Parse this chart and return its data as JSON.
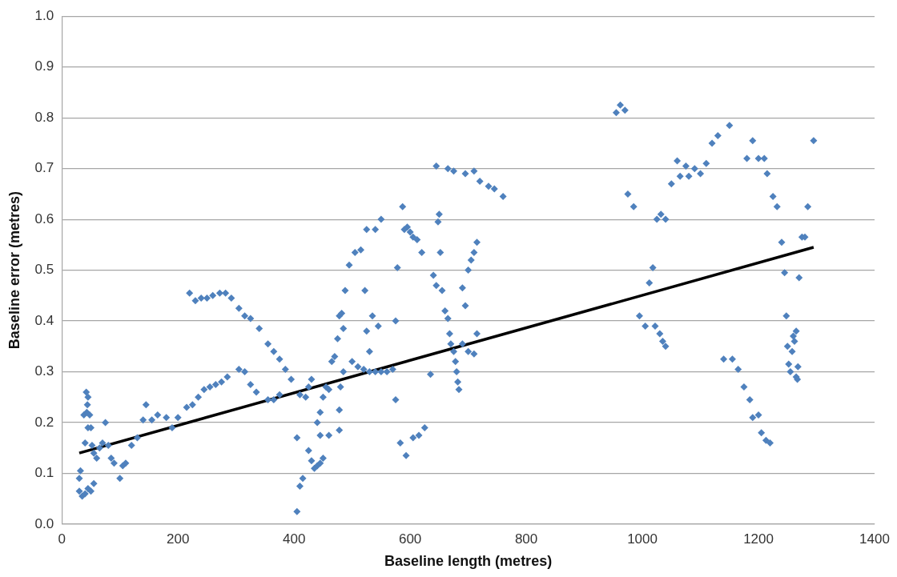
{
  "chart_data": {
    "type": "scatter",
    "xlabel": "Baseline length (metres)",
    "ylabel": "Baseline error (metres)",
    "xlim": [
      0,
      1400
    ],
    "xticks": [
      0,
      200,
      400,
      600,
      800,
      1000,
      1200,
      1400
    ],
    "ylim": [
      0,
      1
    ],
    "yticks": [
      {
        "value": 0,
        "label": "0.0"
      },
      {
        "value": 0.1,
        "label": "0.1"
      },
      {
        "value": 0.2,
        "label": "0.2"
      },
      {
        "value": 0.3,
        "label": "0.3"
      },
      {
        "value": 0.4,
        "label": "0.4"
      },
      {
        "value": 0.5,
        "label": "0.5"
      },
      {
        "value": 0.6,
        "label": "0.6"
      },
      {
        "value": 0.7,
        "label": "0.7"
      },
      {
        "value": 0.8,
        "label": "0.8"
      },
      {
        "value": 0.9,
        "label": "0.9"
      },
      {
        "value": 1,
        "label": "1.0"
      }
    ],
    "grid": "y",
    "legend": false,
    "marker": "diamond",
    "series": [
      {
        "color": "#4f81bd",
        "x": [
          30,
          32,
          30,
          35,
          40,
          45,
          50,
          55,
          38,
          42,
          45,
          44,
          43,
          40,
          45,
          50,
          48,
          52,
          55,
          60,
          65,
          70,
          75,
          80,
          85,
          90,
          100,
          105,
          110,
          120,
          130,
          140,
          145,
          155,
          165,
          180,
          190,
          200,
          215,
          225,
          235,
          245,
          255,
          265,
          275,
          285,
          305,
          315,
          325,
          335,
          355,
          365,
          375,
          220,
          230,
          240,
          250,
          260,
          272,
          282,
          292,
          305,
          315,
          325,
          340,
          355,
          365,
          375,
          385,
          395,
          405,
          410,
          415,
          405,
          410,
          420,
          425,
          430,
          425,
          430,
          435,
          440,
          445,
          450,
          445,
          440,
          445,
          450,
          455,
          460,
          460,
          465,
          470,
          475,
          478,
          482,
          485,
          488,
          495,
          505,
          515,
          525,
          540,
          550,
          478,
          478,
          480,
          485,
          500,
          510,
          520,
          530,
          540,
          550,
          560,
          570,
          522,
          525,
          530,
          535,
          545,
          575,
          578,
          575,
          583,
          593,
          605,
          615,
          625,
          587,
          595,
          590,
          600,
          605,
          612,
          620,
          635,
          640,
          645,
          648,
          650,
          652,
          655,
          660,
          665,
          668,
          670,
          675,
          678,
          680,
          682,
          684,
          690,
          700,
          705,
          710,
          715,
          690,
          695,
          715,
          710,
          700,
          645,
          665,
          675,
          695,
          710,
          720,
          735,
          745,
          760,
          955,
          962,
          970,
          975,
          985,
          995,
          1005,
          1012,
          1018,
          1022,
          1030,
          1035,
          1040,
          1025,
          1032,
          1040,
          1050,
          1060,
          1065,
          1075,
          1080,
          1090,
          1100,
          1110,
          1120,
          1130,
          1150,
          1140,
          1155,
          1165,
          1175,
          1185,
          1190,
          1200,
          1205,
          1213,
          1220,
          1180,
          1190,
          1200,
          1210,
          1215,
          1225,
          1232,
          1240,
          1245,
          1248,
          1250,
          1252,
          1255,
          1260,
          1262,
          1258,
          1265,
          1268,
          1265,
          1267,
          1270,
          1275,
          1280,
          1285,
          1295
        ],
        "values": [
          0.09,
          0.105,
          0.065,
          0.055,
          0.06,
          0.07,
          0.065,
          0.08,
          0.215,
          0.26,
          0.25,
          0.235,
          0.22,
          0.16,
          0.19,
          0.19,
          0.215,
          0.155,
          0.14,
          0.13,
          0.15,
          0.16,
          0.2,
          0.155,
          0.13,
          0.12,
          0.09,
          0.115,
          0.12,
          0.155,
          0.17,
          0.205,
          0.235,
          0.205,
          0.215,
          0.21,
          0.19,
          0.21,
          0.23,
          0.235,
          0.25,
          0.265,
          0.27,
          0.275,
          0.28,
          0.29,
          0.305,
          0.3,
          0.275,
          0.26,
          0.245,
          0.245,
          0.255,
          0.455,
          0.44,
          0.445,
          0.445,
          0.45,
          0.455,
          0.455,
          0.445,
          0.425,
          0.41,
          0.405,
          0.385,
          0.355,
          0.34,
          0.325,
          0.305,
          0.285,
          0.025,
          0.075,
          0.09,
          0.17,
          0.255,
          0.25,
          0.27,
          0.285,
          0.145,
          0.125,
          0.11,
          0.115,
          0.12,
          0.13,
          0.175,
          0.2,
          0.22,
          0.25,
          0.27,
          0.265,
          0.175,
          0.32,
          0.33,
          0.365,
          0.41,
          0.415,
          0.385,
          0.46,
          0.51,
          0.535,
          0.54,
          0.58,
          0.58,
          0.6,
          0.185,
          0.225,
          0.27,
          0.3,
          0.32,
          0.31,
          0.305,
          0.3,
          0.3,
          0.3,
          0.3,
          0.305,
          0.46,
          0.38,
          0.34,
          0.41,
          0.39,
          0.4,
          0.505,
          0.245,
          0.16,
          0.135,
          0.17,
          0.175,
          0.19,
          0.625,
          0.585,
          0.58,
          0.575,
          0.565,
          0.56,
          0.535,
          0.295,
          0.49,
          0.47,
          0.595,
          0.61,
          0.535,
          0.46,
          0.42,
          0.405,
          0.375,
          0.355,
          0.34,
          0.32,
          0.3,
          0.28,
          0.265,
          0.355,
          0.5,
          0.52,
          0.535,
          0.555,
          0.465,
          0.43,
          0.375,
          0.335,
          0.34,
          0.705,
          0.7,
          0.695,
          0.69,
          0.695,
          0.675,
          0.665,
          0.66,
          0.645,
          0.81,
          0.825,
          0.815,
          0.65,
          0.625,
          0.41,
          0.39,
          0.475,
          0.505,
          0.39,
          0.375,
          0.36,
          0.35,
          0.6,
          0.61,
          0.6,
          0.67,
          0.715,
          0.685,
          0.705,
          0.685,
          0.7,
          0.69,
          0.71,
          0.75,
          0.765,
          0.785,
          0.325,
          0.325,
          0.305,
          0.27,
          0.245,
          0.21,
          0.215,
          0.18,
          0.165,
          0.16,
          0.72,
          0.755,
          0.72,
          0.72,
          0.69,
          0.645,
          0.625,
          0.555,
          0.495,
          0.41,
          0.35,
          0.315,
          0.3,
          0.37,
          0.36,
          0.34,
          0.38,
          0.31,
          0.29,
          0.285,
          0.485,
          0.565,
          0.565,
          0.625,
          0.755
        ]
      },
      {
        "type": "line",
        "color": "#000000",
        "x": [
          30,
          1295
        ],
        "values": [
          0.14,
          0.545
        ],
        "marker": "none",
        "line_style": "solid"
      }
    ]
  }
}
